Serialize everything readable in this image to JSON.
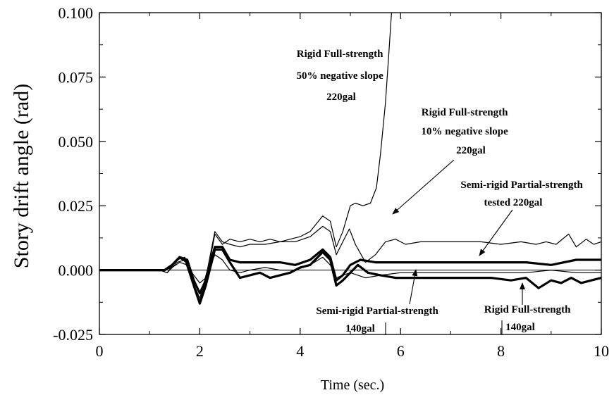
{
  "chart_data": {
    "type": "line",
    "title": "",
    "xlabel": "Time (sec.)",
    "ylabel": "Story drift angle (rad)",
    "xlim": [
      0,
      10
    ],
    "ylim": [
      -0.025,
      0.1
    ],
    "x_ticks": [
      "0",
      "2",
      "4",
      "6",
      "8",
      "10"
    ],
    "y_ticks": [
      "-0.025",
      "0.000",
      "0.025",
      "0.050",
      "0.075",
      "0.100"
    ],
    "grid": false,
    "legend": "none",
    "series": [
      {
        "name": "Rigid Full-strength 50% negative slope 220gal",
        "width": 1.2,
        "points": [
          [
            0,
            0
          ],
          [
            1.2,
            0
          ],
          [
            1.35,
            -0.001
          ],
          [
            1.55,
            0.003
          ],
          [
            1.7,
            0.004
          ],
          [
            1.85,
            -0.005
          ],
          [
            2.0,
            -0.012
          ],
          [
            2.15,
            -0.002
          ],
          [
            2.3,
            0.014
          ],
          [
            2.45,
            0.01
          ],
          [
            2.6,
            0.012
          ],
          [
            2.8,
            0.011
          ],
          [
            3.0,
            0.012
          ],
          [
            3.2,
            0.011
          ],
          [
            3.4,
            0.012
          ],
          [
            3.6,
            0.011
          ],
          [
            3.8,
            0.012
          ],
          [
            4.0,
            0.013
          ],
          [
            4.2,
            0.015
          ],
          [
            4.45,
            0.021
          ],
          [
            4.6,
            0.019
          ],
          [
            4.72,
            0.009
          ],
          [
            4.85,
            0.015
          ],
          [
            5.0,
            0.025
          ],
          [
            5.1,
            0.026
          ],
          [
            5.25,
            0.025
          ],
          [
            5.4,
            0.026
          ],
          [
            5.52,
            0.032
          ],
          [
            5.6,
            0.045
          ],
          [
            5.7,
            0.065
          ],
          [
            5.77,
            0.085
          ],
          [
            5.82,
            0.1
          ]
        ]
      },
      {
        "name": "Rigid Full-strength 10% negative slope 220gal",
        "width": 1.2,
        "points": [
          [
            0,
            0
          ],
          [
            1.2,
            0
          ],
          [
            1.35,
            -0.001
          ],
          [
            1.55,
            0.004
          ],
          [
            1.7,
            0.005
          ],
          [
            1.85,
            -0.004
          ],
          [
            2.0,
            -0.011
          ],
          [
            2.15,
            0.0
          ],
          [
            2.3,
            0.015
          ],
          [
            2.45,
            0.011
          ],
          [
            2.6,
            0.01
          ],
          [
            2.8,
            0.009
          ],
          [
            3.0,
            0.01
          ],
          [
            3.3,
            0.01
          ],
          [
            3.6,
            0.011
          ],
          [
            3.9,
            0.011
          ],
          [
            4.2,
            0.013
          ],
          [
            4.45,
            0.017
          ],
          [
            4.6,
            0.015
          ],
          [
            4.72,
            0.006
          ],
          [
            4.85,
            0.011
          ],
          [
            4.98,
            0.016
          ],
          [
            5.1,
            0.01
          ],
          [
            5.3,
            0.003
          ],
          [
            5.5,
            0.006
          ],
          [
            5.7,
            0.011
          ],
          [
            5.9,
            0.012
          ],
          [
            6.1,
            0.01
          ],
          [
            6.4,
            0.011
          ],
          [
            6.8,
            0.011
          ],
          [
            7.2,
            0.011
          ],
          [
            7.6,
            0.011
          ],
          [
            8.0,
            0.01
          ],
          [
            8.4,
            0.011
          ],
          [
            8.7,
            0.01
          ],
          [
            8.9,
            0.011
          ],
          [
            9.1,
            0.01
          ],
          [
            9.35,
            0.014
          ],
          [
            9.5,
            0.009
          ],
          [
            9.7,
            0.012
          ],
          [
            9.85,
            0.01
          ],
          [
            10,
            0.011
          ]
        ]
      },
      {
        "name": "Semi-rigid Partial-strength tested 220gal",
        "width": 3.2,
        "points": [
          [
            0,
            0
          ],
          [
            1.3,
            0
          ],
          [
            1.45,
            0.002
          ],
          [
            1.6,
            0.005
          ],
          [
            1.75,
            0.003
          ],
          [
            1.88,
            -0.006
          ],
          [
            2.0,
            -0.013
          ],
          [
            2.12,
            -0.006
          ],
          [
            2.3,
            0.008
          ],
          [
            2.45,
            0.008
          ],
          [
            2.6,
            0.003
          ],
          [
            2.8,
            -0.003
          ],
          [
            3.0,
            -0.002
          ],
          [
            3.2,
            -0.001
          ],
          [
            3.4,
            -0.003
          ],
          [
            3.6,
            -0.002
          ],
          [
            3.8,
            -0.001
          ],
          [
            4.0,
            0.001
          ],
          [
            4.2,
            0.002
          ],
          [
            4.45,
            0.007
          ],
          [
            4.6,
            0.004
          ],
          [
            4.72,
            -0.006
          ],
          [
            4.85,
            -0.004
          ],
          [
            5.0,
            -0.001
          ],
          [
            5.15,
            0.002
          ],
          [
            5.35,
            -0.001
          ],
          [
            5.6,
            -0.002
          ],
          [
            5.9,
            -0.003
          ],
          [
            6.3,
            -0.003
          ],
          [
            6.8,
            -0.003
          ],
          [
            7.3,
            -0.003
          ],
          [
            7.8,
            -0.003
          ],
          [
            8.2,
            -0.004
          ],
          [
            8.5,
            -0.003
          ],
          [
            8.75,
            -0.007
          ],
          [
            9.0,
            -0.004
          ],
          [
            9.2,
            -0.005
          ],
          [
            9.4,
            -0.003
          ],
          [
            9.6,
            -0.005
          ],
          [
            9.8,
            -0.004
          ],
          [
            10,
            -0.003
          ]
        ]
      },
      {
        "name": "Semi-rigid Partial-strength 140gal",
        "width": 3.2,
        "points": [
          [
            0,
            0
          ],
          [
            1.3,
            0
          ],
          [
            1.45,
            0.002
          ],
          [
            1.6,
            0.005
          ],
          [
            1.75,
            0.004
          ],
          [
            1.88,
            -0.004
          ],
          [
            2.0,
            -0.009
          ],
          [
            2.12,
            -0.004
          ],
          [
            2.3,
            0.009
          ],
          [
            2.45,
            0.009
          ],
          [
            2.6,
            0.004
          ],
          [
            2.8,
            0.003
          ],
          [
            3.0,
            0.003
          ],
          [
            3.3,
            0.003
          ],
          [
            3.6,
            0.003
          ],
          [
            3.9,
            0.002
          ],
          [
            4.2,
            0.004
          ],
          [
            4.45,
            0.008
          ],
          [
            4.6,
            0.005
          ],
          [
            4.72,
            -0.004
          ],
          [
            4.85,
            -0.002
          ],
          [
            5.0,
            0.002
          ],
          [
            5.2,
            0.004
          ],
          [
            5.5,
            0.003
          ],
          [
            6.0,
            0.003
          ],
          [
            6.5,
            0.003
          ],
          [
            7.0,
            0.003
          ],
          [
            7.5,
            0.003
          ],
          [
            8.0,
            0.003
          ],
          [
            8.5,
            0.003
          ],
          [
            9.0,
            0.002
          ],
          [
            9.5,
            0.004
          ],
          [
            10,
            0.004
          ]
        ]
      },
      {
        "name": "Rigid Full-strength 140gal",
        "width": 1.2,
        "points": [
          [
            0,
            0
          ],
          [
            1.3,
            0
          ],
          [
            1.45,
            0.001
          ],
          [
            1.6,
            0.003
          ],
          [
            1.75,
            0.002
          ],
          [
            1.88,
            -0.002
          ],
          [
            2.0,
            -0.005
          ],
          [
            2.12,
            -0.003
          ],
          [
            2.3,
            0.006
          ],
          [
            2.45,
            0.004
          ],
          [
            2.6,
            0.0
          ],
          [
            2.8,
            -0.001
          ],
          [
            3.0,
            0.0
          ],
          [
            3.3,
            0.001
          ],
          [
            3.6,
            0.0
          ],
          [
            3.9,
            0.0
          ],
          [
            4.2,
            0.002
          ],
          [
            4.45,
            0.005
          ],
          [
            4.6,
            0.002
          ],
          [
            4.72,
            -0.003
          ],
          [
            4.85,
            -0.002
          ],
          [
            5.0,
            -0.001
          ],
          [
            5.3,
            -0.003
          ],
          [
            5.6,
            -0.002
          ],
          [
            6.0,
            -0.001
          ],
          [
            6.5,
            -0.001
          ],
          [
            7.0,
            -0.001
          ],
          [
            7.5,
            -0.001
          ],
          [
            8.0,
            -0.001
          ],
          [
            8.5,
            -0.001
          ],
          [
            9.0,
            0.0
          ],
          [
            9.5,
            -0.001
          ],
          [
            10,
            -0.001
          ]
        ]
      }
    ],
    "annotations": [
      {
        "lines": [
          "Rigid Full-strength",
          "50% negative slope",
          "220gal"
        ]
      },
      {
        "lines": [
          "Rigid Full-strength",
          "10% negative slope",
          "220gal"
        ]
      },
      {
        "lines": [
          "Semi-rigid Partial-strength",
          "tested 220gal"
        ]
      },
      {
        "lines": [
          "Semi-rigid Partial-strength",
          "140gal"
        ]
      },
      {
        "lines": [
          "Rigid Full-strength",
          "140gal"
        ]
      }
    ]
  }
}
